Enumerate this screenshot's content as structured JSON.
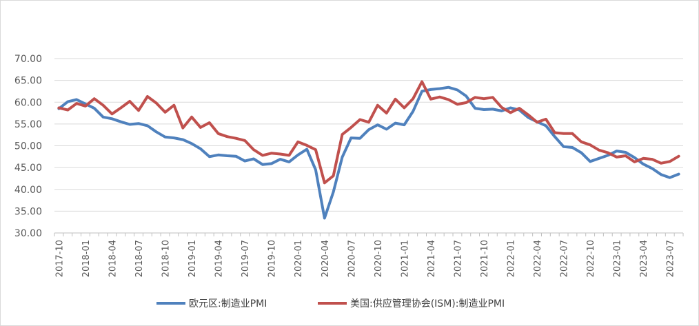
{
  "chart_data": {
    "type": "line",
    "title": "",
    "xlabel": "",
    "ylabel": "",
    "ylim": [
      30,
      70
    ],
    "yticks": [
      "30.00",
      "35.00",
      "40.00",
      "45.00",
      "50.00",
      "55.00",
      "60.00",
      "65.00",
      "70.00"
    ],
    "xticks": [
      "2017-10",
      "2018-01",
      "2018-04",
      "2018-07",
      "2018-10",
      "2019-01",
      "2019-04",
      "2019-07",
      "2019-10",
      "2020-01",
      "2020-04",
      "2020-07",
      "2020-10",
      "2021-01",
      "2021-04",
      "2021-07",
      "2021-10",
      "2022-01",
      "2022-04",
      "2022-07",
      "2022-10",
      "2023-01",
      "2023-04",
      "2023-07"
    ],
    "categories": [
      "2017-10",
      "2017-11",
      "2017-12",
      "2018-01",
      "2018-02",
      "2018-03",
      "2018-04",
      "2018-05",
      "2018-06",
      "2018-07",
      "2018-08",
      "2018-09",
      "2018-10",
      "2018-11",
      "2018-12",
      "2019-01",
      "2019-02",
      "2019-03",
      "2019-04",
      "2019-05",
      "2019-06",
      "2019-07",
      "2019-08",
      "2019-09",
      "2019-10",
      "2019-11",
      "2019-12",
      "2020-01",
      "2020-02",
      "2020-03",
      "2020-04",
      "2020-05",
      "2020-06",
      "2020-07",
      "2020-08",
      "2020-09",
      "2020-10",
      "2020-11",
      "2020-12",
      "2021-01",
      "2021-02",
      "2021-03",
      "2021-04",
      "2021-05",
      "2021-06",
      "2021-07",
      "2021-08",
      "2021-09",
      "2021-10",
      "2021-11",
      "2021-12",
      "2022-01",
      "2022-02",
      "2022-03",
      "2022-04",
      "2022-05",
      "2022-06",
      "2022-07",
      "2022-08",
      "2022-09",
      "2022-10",
      "2022-11",
      "2022-12",
      "2023-01",
      "2023-02",
      "2023-03",
      "2023-04",
      "2023-05",
      "2023-06",
      "2023-07",
      "2023-08"
    ],
    "series": [
      {
        "name": "欧元区:制造业PMI",
        "color": "#4f81bd",
        "values": [
          58.5,
          60.1,
          60.6,
          59.6,
          58.6,
          56.6,
          56.2,
          55.5,
          54.9,
          55.1,
          54.6,
          53.2,
          52.0,
          51.8,
          51.4,
          50.5,
          49.3,
          47.5,
          47.9,
          47.7,
          47.6,
          46.5,
          47.0,
          45.7,
          45.9,
          46.9,
          46.3,
          47.9,
          49.2,
          44.5,
          33.4,
          39.4,
          47.4,
          51.8,
          51.7,
          53.7,
          54.8,
          53.8,
          55.2,
          54.8,
          57.9,
          62.5,
          62.9,
          63.1,
          63.4,
          62.8,
          61.4,
          58.6,
          58.3,
          58.4,
          58.0,
          58.7,
          58.2,
          56.5,
          55.5,
          54.6,
          52.1,
          49.8,
          49.6,
          48.4,
          46.4,
          47.1,
          47.8,
          48.8,
          48.5,
          47.3,
          45.8,
          44.8,
          43.4,
          42.7,
          43.5
        ]
      },
      {
        "name": "美国:供应管理协会(ISM):制造业PMI",
        "color": "#c0504d",
        "values": [
          58.7,
          58.2,
          59.7,
          59.1,
          60.8,
          59.3,
          57.3,
          58.7,
          60.2,
          58.1,
          61.3,
          59.8,
          57.7,
          59.3,
          54.1,
          56.6,
          54.2,
          55.3,
          52.8,
          52.1,
          51.7,
          51.2,
          49.1,
          47.8,
          48.3,
          48.1,
          47.8,
          50.9,
          50.1,
          49.1,
          41.5,
          43.1,
          52.6,
          54.2,
          56.0,
          55.4,
          59.3,
          57.5,
          60.7,
          58.7,
          60.8,
          64.7,
          60.7,
          61.2,
          60.6,
          59.5,
          59.9,
          61.1,
          60.8,
          61.1,
          58.8,
          57.6,
          58.6,
          57.1,
          55.4,
          56.1,
          53.0,
          52.8,
          52.8,
          50.9,
          50.2,
          49.0,
          48.4,
          47.4,
          47.7,
          46.3,
          47.1,
          46.9,
          46.0,
          46.4,
          47.6
        ]
      }
    ],
    "grid": "horizontal",
    "legend": "bottom"
  }
}
